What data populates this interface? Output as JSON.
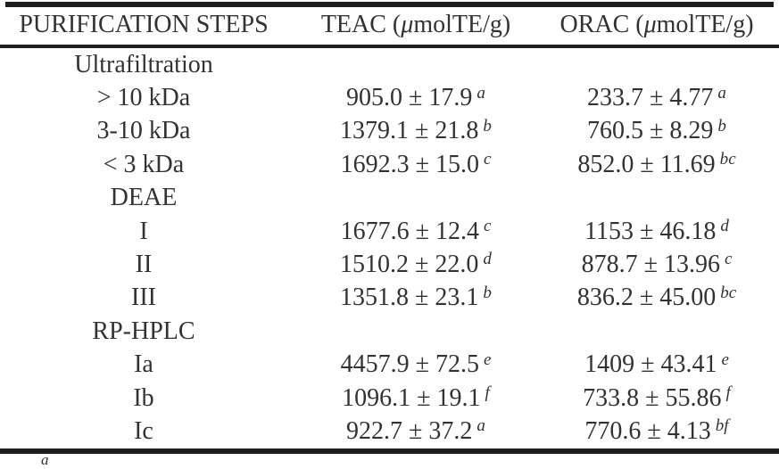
{
  "page": {
    "background_color": "#ffffff",
    "text_color": "#323232",
    "rule_color": "#1e1e1e"
  },
  "table": {
    "headers": [
      {
        "text": "PURIFICATION STEPS"
      },
      {
        "pre": "TEAC (",
        "mu": "μ",
        "post": "molTE/g)"
      },
      {
        "pre": "ORAC (",
        "mu": "μ",
        "post": "molTE/g)"
      }
    ],
    "rows": [
      {
        "type": "section",
        "step": "Ultrafiltration",
        "teac": "",
        "teac_sup": "",
        "orac": "",
        "orac_sup": ""
      },
      {
        "type": "item",
        "step": "> 10 kDa",
        "teac": "905.0 ± 17.9",
        "teac_sup": "a",
        "orac": "233.7 ± 4.77",
        "orac_sup": "a"
      },
      {
        "type": "item",
        "step": "3-10 kDa",
        "teac": "1379.1 ± 21.8",
        "teac_sup": "b",
        "orac": "760.5 ± 8.29",
        "orac_sup": "b"
      },
      {
        "type": "item",
        "step": "< 3 kDa",
        "teac": "1692.3 ± 15.0",
        "teac_sup": "c",
        "orac": "852.0 ± 11.69",
        "orac_sup": "bc"
      },
      {
        "type": "section",
        "step": "DEAE",
        "teac": "",
        "teac_sup": "",
        "orac": "",
        "orac_sup": ""
      },
      {
        "type": "item",
        "step": "I",
        "teac": "1677.6 ± 12.4",
        "teac_sup": "c",
        "orac": "1153 ± 46.18",
        "orac_sup": "d"
      },
      {
        "type": "item",
        "step": "II",
        "teac": "1510.2 ± 22.0",
        "teac_sup": "d",
        "orac": "878.7 ± 13.96",
        "orac_sup": "c"
      },
      {
        "type": "item",
        "step": "III",
        "teac": "1351.8 ± 23.1",
        "teac_sup": "b",
        "orac": "836.2 ± 45.00",
        "orac_sup": "bc"
      },
      {
        "type": "section",
        "step": "RP-HPLC",
        "teac": "",
        "teac_sup": "",
        "orac": "",
        "orac_sup": ""
      },
      {
        "type": "item",
        "step": "Ia",
        "teac": "4457.9 ± 72.5",
        "teac_sup": "e",
        "orac": "1409 ± 43.41",
        "orac_sup": "e"
      },
      {
        "type": "item",
        "step": "Ib",
        "teac": "1096.1 ± 19.1",
        "teac_sup": "f",
        "orac": "733.8 ± 55.86",
        "orac_sup": "f"
      },
      {
        "type": "item",
        "step": "Ic",
        "teac": "922.7 ± 37.2",
        "teac_sup": "a",
        "orac": "770.6 ± 4.13",
        "orac_sup": "bf"
      }
    ],
    "footnote_marker": "a"
  }
}
